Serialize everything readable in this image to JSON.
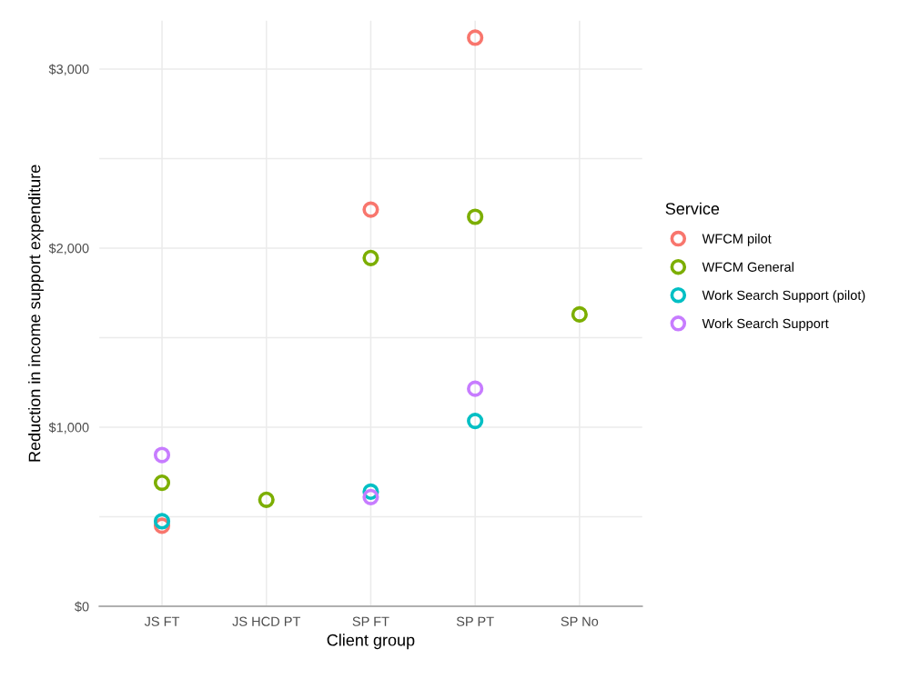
{
  "chart_data": {
    "type": "scatter",
    "xlabel": "Client group",
    "ylabel": "Reduction in income support expenditure",
    "legend_title": "Service",
    "categories": [
      "JS FT",
      "JS HCD PT",
      "SP FT",
      "SP PT",
      "SP No"
    ],
    "series": [
      {
        "name": "WFCM pilot",
        "color": "#f8766d",
        "values": [
          450,
          null,
          2215,
          3175,
          null
        ]
      },
      {
        "name": "WFCM General",
        "color": "#7cae00",
        "values": [
          690,
          595,
          1945,
          2175,
          1630
        ]
      },
      {
        "name": "Work Search Support (pilot)",
        "color": "#00bfc4",
        "values": [
          475,
          null,
          640,
          1035,
          null
        ]
      },
      {
        "name": "Work Search Support",
        "color": "#c77cff",
        "values": [
          845,
          null,
          610,
          1215,
          null
        ]
      }
    ],
    "ylim": [
      0,
      3270
    ],
    "yticks": [
      {
        "value": 0,
        "label": "$0"
      },
      {
        "value": 500,
        "label": null
      },
      {
        "value": 1000,
        "label": "$1,000"
      },
      {
        "value": 1500,
        "label": null
      },
      {
        "value": 2000,
        "label": "$2,000"
      },
      {
        "value": 2500,
        "label": null
      },
      {
        "value": 3000,
        "label": "$3,000"
      }
    ],
    "grid": true,
    "legend": "right",
    "marker": "circle"
  }
}
